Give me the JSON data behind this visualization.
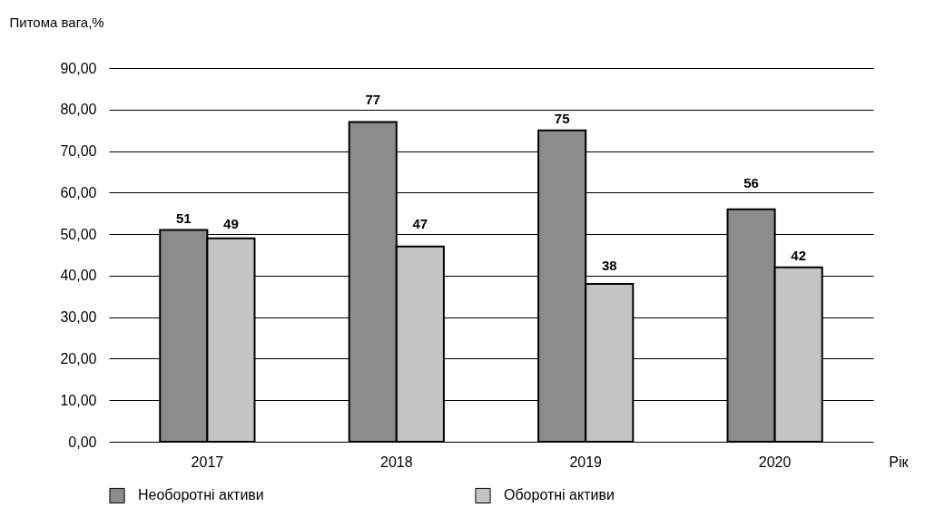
{
  "chart_data": {
    "type": "bar",
    "ylabel": "Питома вага,%",
    "xlabel": "Рік",
    "categories": [
      "2017",
      "2018",
      "2019",
      "2020"
    ],
    "series": [
      {
        "name": "Необоротні активи",
        "color": "#8c8c8c",
        "values": [
          51,
          77,
          75,
          56
        ]
      },
      {
        "name": "Оборотні активи",
        "color": "#c4c4c4",
        "values": [
          49,
          47,
          38,
          42
        ]
      }
    ],
    "ylim": [
      0,
      90
    ],
    "yticks": [
      {
        "value": 0,
        "label": "0,00"
      },
      {
        "value": 10,
        "label": "10,00"
      },
      {
        "value": 20,
        "label": "20,00"
      },
      {
        "value": 30,
        "label": "30,00"
      },
      {
        "value": 40,
        "label": "40,00"
      },
      {
        "value": 50,
        "label": "50,00"
      },
      {
        "value": 60,
        "label": "60,00"
      },
      {
        "value": 70,
        "label": "70,00"
      },
      {
        "value": 80,
        "label": "80,00"
      },
      {
        "value": 90,
        "label": "90,00"
      }
    ],
    "grid": "y",
    "legend": "bottom",
    "data_labels": true
  }
}
